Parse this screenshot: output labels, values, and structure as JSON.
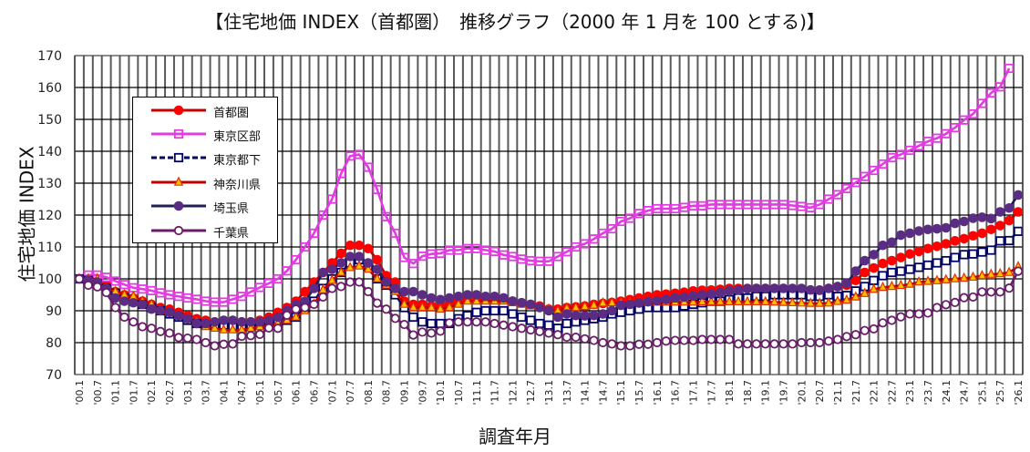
{
  "chart_data": {
    "type": "line",
    "title": "【住宅地価 INDEX（首都圏）　推移グラフ（2000 年 1 月を 100 とする)】",
    "xlabel": "調査年月",
    "ylabel": "住宅地価 INDEX",
    "ylim": [
      70,
      170
    ],
    "y_ticks": [
      70,
      80,
      90,
      100,
      110,
      120,
      130,
      140,
      150,
      160,
      170
    ],
    "x_period": "quarterly, 2000.1 to 2026.1",
    "x_tick_labels": [
      "'00.1",
      "'00.7",
      "'01.1",
      "'01.7",
      "'02.1",
      "'02.7",
      "'03.1",
      "'03.7",
      "'04.1",
      "'04.7",
      "'05.1",
      "'05.7",
      "'06.1",
      "'06.7",
      "'07.1",
      "'07.7",
      "'08.1",
      "'08.7",
      "'09.1",
      "'09.7",
      "'10.1",
      "'10.7",
      "'11.1",
      "'11.7",
      "'12.1",
      "'12.7",
      "'13.1",
      "'13.7",
      "'14.1",
      "'14.7",
      "'15.1",
      "'15.7",
      "'16.1",
      "'16.7",
      "'17.1",
      "'17.7",
      "'18.1",
      "'18.7",
      "'19.1",
      "'19.7",
      "'20.1",
      "'20.7",
      "'21.1",
      "'21.7",
      "'22.1",
      "'22.7",
      "'23.1",
      "'23.7",
      "'24.1",
      "'24.7",
      "'25.1",
      "'25.7",
      "'26.1"
    ],
    "grid": true,
    "legend_position": "top-left",
    "series": [
      {
        "name": "首都圏",
        "color": "#FF0000",
        "line_color": "#C00000",
        "marker": "filled-circle",
        "marker_fill": "#FF0000",
        "values": [
          100,
          99.5,
          99,
          98,
          96,
          95,
          94,
          93,
          92,
          91,
          90.5,
          89.5,
          88.5,
          87.5,
          87,
          86.5,
          86,
          86,
          86.5,
          86.5,
          87,
          88,
          89.5,
          91,
          93,
          96,
          99,
          102,
          105,
          108,
          110.5,
          110.5,
          109.5,
          106,
          101,
          99,
          93,
          92,
          92,
          91.5,
          91.5,
          92,
          93,
          93.5,
          94,
          94,
          94,
          94,
          93,
          92.5,
          92,
          91.5,
          90.5,
          90.5,
          91,
          91.2,
          91.5,
          92,
          92.3,
          92.6,
          93,
          93.5,
          94,
          94.5,
          95,
          95.2,
          95.5,
          95.8,
          96.2,
          96.4,
          96.5,
          96.7,
          97,
          97,
          97,
          97,
          97,
          97,
          97,
          96.8,
          96.6,
          96.5,
          96.5,
          97,
          97.5,
          98,
          99.5,
          102,
          103.4,
          104.8,
          105.7,
          106.7,
          107.8,
          108.6,
          109.5,
          110.2,
          111,
          111.9,
          112.6,
          113.5,
          114.3,
          115.5,
          116.7,
          118.3,
          121
        ]
      },
      {
        "name": "東京区部",
        "color": "#E03CE0",
        "line_color": "#E03CE0",
        "marker": "open-square",
        "marker_fill": "#FBD0FB",
        "values": [
          100,
          101.2,
          101.2,
          100.5,
          99.3,
          98.2,
          97.2,
          96.8,
          96.3,
          95.6,
          95,
          94.5,
          94,
          93.6,
          93,
          92.7,
          92.7,
          93.6,
          94.5,
          95.9,
          97.3,
          98.6,
          100,
          102.5,
          106,
          110,
          114.3,
          120,
          125,
          133,
          138.5,
          139,
          135,
          128,
          119.5,
          114.3,
          106.7,
          104.8,
          107.1,
          107.8,
          108,
          109,
          109,
          109.5,
          109.5,
          109,
          108.6,
          107.5,
          107,
          106.2,
          105.7,
          105.5,
          105.5,
          107,
          108.5,
          110,
          111,
          112.5,
          114.3,
          115.7,
          118,
          119,
          120.5,
          121.4,
          122,
          122,
          122,
          122.4,
          122.9,
          122.9,
          123.3,
          123.3,
          123.3,
          123.3,
          123.3,
          123.3,
          123.3,
          123.3,
          123.3,
          123,
          122.7,
          122.3,
          123.3,
          125,
          126.4,
          128.3,
          130.2,
          132.1,
          134,
          136,
          138,
          139,
          140.3,
          141.7,
          143.1,
          144.1,
          145.5,
          147.4,
          149.8,
          151.7,
          155,
          158.3,
          160.2,
          166
        ]
      },
      {
        "name": "東京都下",
        "color": "#000066",
        "line_color": "#000066",
        "marker": "open-square",
        "marker_fill": "#FFFFFF",
        "dashed": true,
        "values": [
          100,
          99.5,
          98.5,
          97,
          95.5,
          94,
          93,
          92,
          91,
          90,
          89,
          88,
          87,
          86,
          85.5,
          85.5,
          85.5,
          85,
          85,
          85,
          85.5,
          85.5,
          86,
          87,
          88,
          91,
          93,
          97,
          100,
          102,
          105,
          106,
          104,
          100,
          98,
          95,
          91,
          88,
          86.5,
          86,
          86,
          86,
          87.5,
          88.5,
          89.5,
          90,
          90,
          90,
          89,
          88,
          87,
          86,
          85.5,
          84.5,
          86,
          86.5,
          87,
          87.5,
          88,
          89,
          89.5,
          90,
          90.5,
          91,
          91,
          91,
          91,
          91.5,
          92,
          92.5,
          93,
          93,
          93.5,
          94,
          94,
          94.5,
          94.5,
          95,
          95,
          95,
          95,
          94.5,
          94.5,
          95,
          94.5,
          94.8,
          96.2,
          97.6,
          99.5,
          101,
          102,
          102.4,
          103,
          103.6,
          104.3,
          105,
          105.7,
          106.7,
          107.6,
          107.8,
          108.4,
          109,
          111.9,
          112,
          114.9
        ]
      },
      {
        "name": "神奈川県",
        "color": "#C00000",
        "line_color": "#C00000",
        "marker": "triangle",
        "marker_fill": "#FFC000",
        "values": [
          100,
          100,
          100,
          97,
          96,
          95,
          94.5,
          93,
          92,
          90,
          89.5,
          88.5,
          87.5,
          86.5,
          85,
          84.5,
          84,
          84,
          84,
          84.5,
          85,
          85.5,
          86,
          87,
          88,
          90,
          92,
          96.5,
          99.5,
          102,
          103.5,
          104,
          103,
          100,
          98,
          96,
          92,
          91,
          91,
          91,
          90.5,
          91,
          92,
          93,
          93,
          93,
          93,
          93,
          92.5,
          92,
          91.5,
          91,
          90.5,
          90,
          90.8,
          91,
          91.3,
          91.7,
          92.4,
          92.5,
          92.5,
          92.6,
          92.7,
          92.7,
          92.7,
          92.7,
          92.7,
          92.7,
          92.7,
          92.8,
          92.8,
          92.8,
          92.8,
          92.8,
          92.8,
          92.8,
          92.8,
          92.7,
          92.6,
          92.5,
          92.4,
          92.3,
          92.3,
          92.4,
          92.9,
          93.3,
          94.3,
          95.4,
          96.7,
          97.3,
          97.6,
          97.9,
          98.3,
          99,
          99.2,
          99.4,
          99.7,
          100,
          100.2,
          100.5,
          101,
          101.4,
          101.6,
          102,
          103.8
        ]
      },
      {
        "name": "埼玉県",
        "color": "#5B2C83",
        "line_color": "#1F1F5A",
        "marker": "filled-circle",
        "marker_fill": "#5B2C83",
        "values": [
          100,
          99.5,
          99,
          97,
          94,
          93,
          92.5,
          92,
          90.5,
          90,
          89.5,
          88.5,
          87.5,
          86,
          86,
          86.5,
          87,
          87,
          86.5,
          86.5,
          86.5,
          87,
          88,
          90,
          92,
          93,
          97,
          102,
          103,
          105,
          107,
          107,
          105,
          103,
          99,
          97,
          96,
          96,
          95,
          94,
          93.5,
          94,
          94.5,
          95,
          95,
          94.5,
          94.5,
          94,
          93,
          92.5,
          92,
          91,
          90,
          88,
          89,
          88.5,
          88.4,
          88.5,
          89,
          90,
          91.7,
          92,
          92.4,
          92.8,
          93.1,
          93.5,
          94,
          94.3,
          94.6,
          95,
          95.2,
          95.7,
          96.2,
          96.5,
          96.9,
          97,
          97,
          97,
          97,
          97,
          97,
          96.5,
          96.4,
          97,
          97.6,
          98.6,
          102.4,
          105.7,
          107.6,
          110.5,
          111.5,
          113.7,
          114.3,
          115,
          115.5,
          115.7,
          116,
          117.4,
          118,
          119,
          119.3,
          118.9,
          121,
          122.2,
          126.3
        ]
      },
      {
        "name": "千葉県",
        "color": "#6A1B6A",
        "line_color": "#6A1B6A",
        "marker": "open-circle",
        "marker_fill": "#FFFFFF",
        "values": [
          100,
          98,
          97.5,
          95.7,
          91,
          88,
          86.5,
          85,
          84.5,
          83.5,
          83,
          81.6,
          81.4,
          81,
          80,
          79,
          79.5,
          79.6,
          82,
          82.2,
          82.6,
          84.6,
          84.5,
          88.6,
          90.5,
          91,
          92,
          94.3,
          97,
          97.6,
          99,
          99,
          96,
          92.4,
          90.5,
          87.6,
          85.7,
          82.4,
          83.3,
          83,
          83.6,
          86.2,
          86.5,
          86.5,
          86.5,
          86.5,
          86,
          85.5,
          85,
          84.5,
          84,
          83.5,
          83,
          82.5,
          81.7,
          81.7,
          81.2,
          80.7,
          80,
          79.6,
          79,
          79,
          79.5,
          79.5,
          80,
          80.5,
          80.7,
          80.7,
          80.7,
          81,
          81,
          81,
          81,
          79.6,
          79.6,
          79.6,
          79.6,
          79.6,
          79.6,
          79.6,
          80,
          80,
          80,
          80.5,
          81,
          81.9,
          82.5,
          83.8,
          84.3,
          86.2,
          87,
          88.1,
          89,
          89,
          89.3,
          91,
          91.9,
          92.6,
          94.1,
          94.3,
          95.9,
          95.9,
          95.9,
          97.1,
          102.4
        ]
      }
    ]
  }
}
